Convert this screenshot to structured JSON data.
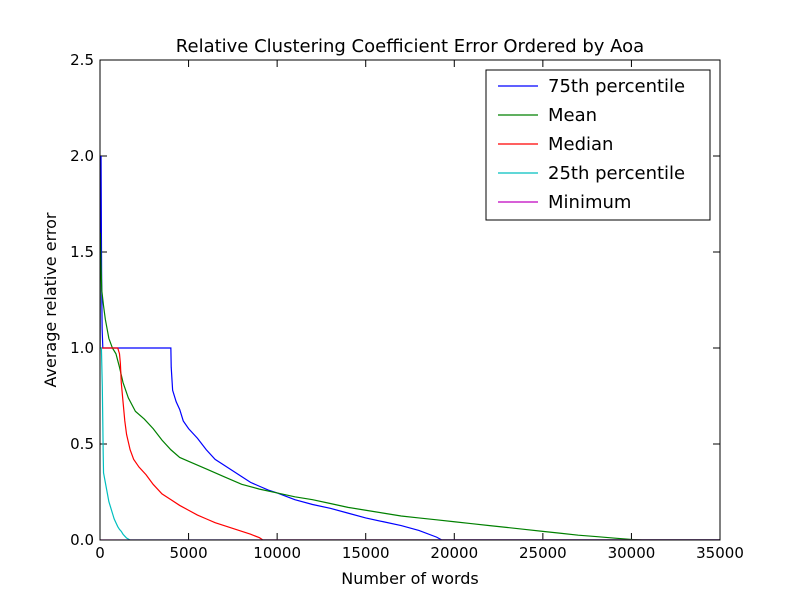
{
  "chart_data": {
    "type": "line",
    "title": "Relative Clustering Coefficient Error Ordered by Aoa",
    "xlabel": "Number of words",
    "ylabel": "Average relative error",
    "xlim": [
      0,
      35000
    ],
    "ylim": [
      0.0,
      2.5
    ],
    "grid": false,
    "legend_position": "top-right",
    "x_ticks": [
      0,
      5000,
      10000,
      15000,
      20000,
      25000,
      30000,
      35000
    ],
    "x_tick_labels": [
      "0",
      "5000",
      "10000",
      "15000",
      "20000",
      "25000",
      "30000",
      "35000"
    ],
    "y_ticks": [
      0.0,
      0.5,
      1.0,
      1.5,
      2.0,
      2.5
    ],
    "y_tick_labels": [
      "0.0",
      "0.5",
      "1.0",
      "1.5",
      "2.0",
      "2.5"
    ],
    "series": [
      {
        "name": "75th percentile",
        "color": "#0000ff",
        "points": [
          [
            0,
            1.0
          ],
          [
            20,
            1.9
          ],
          [
            40,
            1.6
          ],
          [
            60,
            2.0
          ],
          [
            90,
            1.4
          ],
          [
            120,
            1.1
          ],
          [
            160,
            1.0
          ],
          [
            500,
            1.0
          ],
          [
            1000,
            1.0
          ],
          [
            2000,
            1.0
          ],
          [
            3000,
            1.0
          ],
          [
            4000,
            1.0
          ],
          [
            4020,
            0.9
          ],
          [
            4100,
            0.78
          ],
          [
            4300,
            0.72
          ],
          [
            4500,
            0.68
          ],
          [
            4700,
            0.62
          ],
          [
            5000,
            0.58
          ],
          [
            5500,
            0.53
          ],
          [
            6000,
            0.47
          ],
          [
            6500,
            0.42
          ],
          [
            7000,
            0.39
          ],
          [
            7500,
            0.36
          ],
          [
            8000,
            0.33
          ],
          [
            8500,
            0.3
          ],
          [
            9000,
            0.28
          ],
          [
            9500,
            0.26
          ],
          [
            10000,
            0.245
          ],
          [
            11000,
            0.21
          ],
          [
            12000,
            0.185
          ],
          [
            13000,
            0.165
          ],
          [
            14000,
            0.14
          ],
          [
            15000,
            0.115
          ],
          [
            16000,
            0.095
          ],
          [
            17000,
            0.075
          ],
          [
            18000,
            0.05
          ],
          [
            19000,
            0.015
          ],
          [
            19300,
            0.0
          ],
          [
            35000,
            0.0
          ]
        ]
      },
      {
        "name": "Mean",
        "color": "#008000",
        "points": [
          [
            0,
            1.0
          ],
          [
            20,
            1.6
          ],
          [
            50,
            1.45
          ],
          [
            100,
            1.3
          ],
          [
            200,
            1.22
          ],
          [
            300,
            1.15
          ],
          [
            400,
            1.1
          ],
          [
            500,
            1.05
          ],
          [
            700,
            1.0
          ],
          [
            900,
            0.97
          ],
          [
            1100,
            0.9
          ],
          [
            1300,
            0.82
          ],
          [
            1600,
            0.74
          ],
          [
            2000,
            0.67
          ],
          [
            2500,
            0.63
          ],
          [
            3000,
            0.58
          ],
          [
            3500,
            0.52
          ],
          [
            4000,
            0.47
          ],
          [
            4500,
            0.43
          ],
          [
            5000,
            0.41
          ],
          [
            6000,
            0.37
          ],
          [
            7000,
            0.33
          ],
          [
            8000,
            0.29
          ],
          [
            9000,
            0.265
          ],
          [
            10000,
            0.245
          ],
          [
            11000,
            0.225
          ],
          [
            12000,
            0.21
          ],
          [
            13000,
            0.19
          ],
          [
            14000,
            0.17
          ],
          [
            15000,
            0.155
          ],
          [
            16000,
            0.14
          ],
          [
            17000,
            0.125
          ],
          [
            18000,
            0.115
          ],
          [
            19000,
            0.105
          ],
          [
            20000,
            0.095
          ],
          [
            21000,
            0.085
          ],
          [
            22000,
            0.075
          ],
          [
            23000,
            0.065
          ],
          [
            24000,
            0.055
          ],
          [
            25000,
            0.045
          ],
          [
            26000,
            0.035
          ],
          [
            27000,
            0.025
          ],
          [
            28000,
            0.018
          ],
          [
            29000,
            0.01
          ],
          [
            30000,
            0.003
          ],
          [
            30600,
            0.0
          ],
          [
            35000,
            0.0
          ]
        ]
      },
      {
        "name": "Median",
        "color": "#ff0000",
        "points": [
          [
            0,
            1.0
          ],
          [
            200,
            1.0
          ],
          [
            500,
            1.0
          ],
          [
            800,
            1.0
          ],
          [
            1000,
            1.0
          ],
          [
            1100,
            0.97
          ],
          [
            1150,
            0.92
          ],
          [
            1200,
            0.82
          ],
          [
            1300,
            0.72
          ],
          [
            1400,
            0.62
          ],
          [
            1500,
            0.55
          ],
          [
            1700,
            0.47
          ],
          [
            1900,
            0.42
          ],
          [
            2200,
            0.38
          ],
          [
            2600,
            0.34
          ],
          [
            3000,
            0.29
          ],
          [
            3500,
            0.24
          ],
          [
            4000,
            0.21
          ],
          [
            4500,
            0.18
          ],
          [
            5000,
            0.155
          ],
          [
            5500,
            0.13
          ],
          [
            6000,
            0.11
          ],
          [
            6500,
            0.09
          ],
          [
            7000,
            0.075
          ],
          [
            7500,
            0.06
          ],
          [
            8000,
            0.045
          ],
          [
            8500,
            0.03
          ],
          [
            9000,
            0.012
          ],
          [
            9200,
            0.0
          ],
          [
            35000,
            0.0
          ]
        ]
      },
      {
        "name": "25th percentile",
        "color": "#00bfbf",
        "points": [
          [
            0,
            1.0
          ],
          [
            80,
            1.0
          ],
          [
            130,
            0.8
          ],
          [
            160,
            0.6
          ],
          [
            180,
            0.45
          ],
          [
            200,
            0.35
          ],
          [
            300,
            0.3
          ],
          [
            400,
            0.25
          ],
          [
            500,
            0.2
          ],
          [
            600,
            0.17
          ],
          [
            700,
            0.14
          ],
          [
            800,
            0.11
          ],
          [
            900,
            0.09
          ],
          [
            1000,
            0.07
          ],
          [
            1100,
            0.055
          ],
          [
            1200,
            0.045
          ],
          [
            1300,
            0.03
          ],
          [
            1400,
            0.02
          ],
          [
            1500,
            0.01
          ],
          [
            1700,
            0.0
          ],
          [
            35000,
            0.0
          ]
        ]
      },
      {
        "name": "Minimum",
        "color": "#bf00bf",
        "points": [
          [
            0,
            0.0
          ],
          [
            35000,
            0.0
          ]
        ]
      }
    ]
  }
}
